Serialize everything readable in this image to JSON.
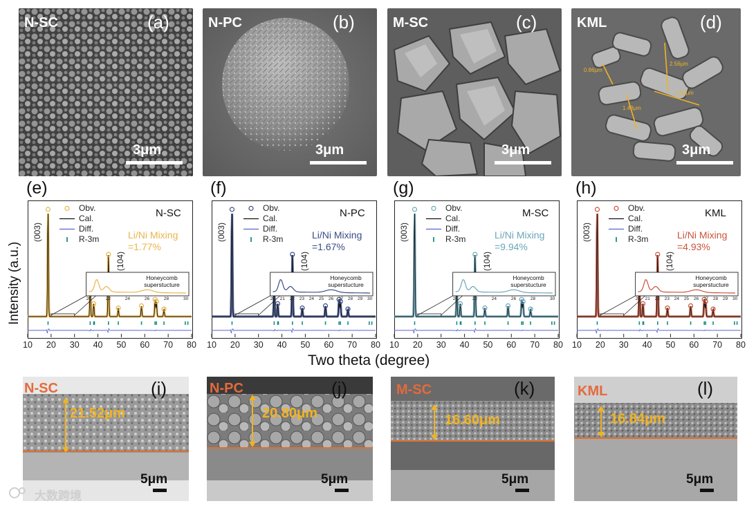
{
  "sem_panels": [
    {
      "tag": "N-SC",
      "letter": "(a)",
      "scale": "3μm"
    },
    {
      "tag": "N-PC",
      "letter": "(b)",
      "scale": "3μm"
    },
    {
      "tag": "M-SC",
      "letter": "(c)",
      "scale": "3μm"
    },
    {
      "tag": "KML",
      "letter": "(d)",
      "scale": "3μm"
    }
  ],
  "kml_measurements": [
    "0.86μm",
    "1.48μm",
    "2.56μm",
    "1.03μm"
  ],
  "xrd_panels": [
    {
      "letter": "(e)",
      "sample": "N-SC",
      "mixing_label": "Li/Ni Mixing",
      "mixing_value": "=1.77%",
      "color": "#e8b44c"
    },
    {
      "letter": "(f)",
      "sample": "N-PC",
      "mixing_label": "Li/Ni Mixing",
      "mixing_value": "=1.67%",
      "color": "#3a4c86"
    },
    {
      "letter": "(g)",
      "sample": "M-SC",
      "mixing_label": "Li/Ni Mixing",
      "mixing_value": "=9.94%",
      "color": "#6aa6b8"
    },
    {
      "letter": "(h)",
      "sample": "KML",
      "mixing_label": "Li/Ni Mixing",
      "mixing_value": "=4.93%",
      "color": "#c9533a"
    }
  ],
  "legend": [
    "Obv.",
    "Cal.",
    "Diff.",
    "R-3m"
  ],
  "peak_labels": [
    "(003)",
    "(104)"
  ],
  "inset": {
    "title": "Honeycomb",
    "subtitle": "superstucture",
    "ticks": [
      "20",
      "22",
      "24",
      "26",
      "28",
      "30"
    ],
    "ticks_short": [
      "20",
      "21",
      "22",
      "23",
      "24",
      "25",
      "26",
      "27",
      "28",
      "29",
      "30"
    ]
  },
  "chart_data": {
    "type": "line",
    "xlabel": "Two theta (degree)",
    "ylabel": "Intensity (a.u.)",
    "xlim": [
      10,
      80
    ],
    "xticks": [
      10,
      20,
      30,
      40,
      50,
      60,
      70,
      80
    ],
    "peaks": [
      {
        "x": 18.7,
        "h": 1.0
      },
      {
        "x": 36.7,
        "h": 0.3
      },
      {
        "x": 38.2,
        "h": 0.12
      },
      {
        "x": 44.5,
        "h": 0.58
      },
      {
        "x": 48.7,
        "h": 0.08
      },
      {
        "x": 58.6,
        "h": 0.1
      },
      {
        "x": 64.4,
        "h": 0.16
      },
      {
        "x": 65.0,
        "h": 0.14
      },
      {
        "x": 68.2,
        "h": 0.07
      }
    ],
    "reflections": [
      18.7,
      36.7,
      38.2,
      38.5,
      44.5,
      48.7,
      58.6,
      64.4,
      65.0,
      68.2,
      77.3,
      78.4
    ]
  },
  "xs_panels": [
    {
      "tag": "N-SC",
      "letter": "(i)",
      "thickness": "21.52μm",
      "scale": "5μm"
    },
    {
      "tag": "N-PC",
      "letter": "(j)",
      "thickness": "20.80μm",
      "scale": "5μm"
    },
    {
      "tag": "M-SC",
      "letter": "(k)",
      "thickness": "16.60μm",
      "scale": "5μm"
    },
    {
      "tag": "KML",
      "letter": "(l)",
      "thickness": "16.84μm",
      "scale": "5μm"
    }
  ],
  "watermark": "大数跨境"
}
